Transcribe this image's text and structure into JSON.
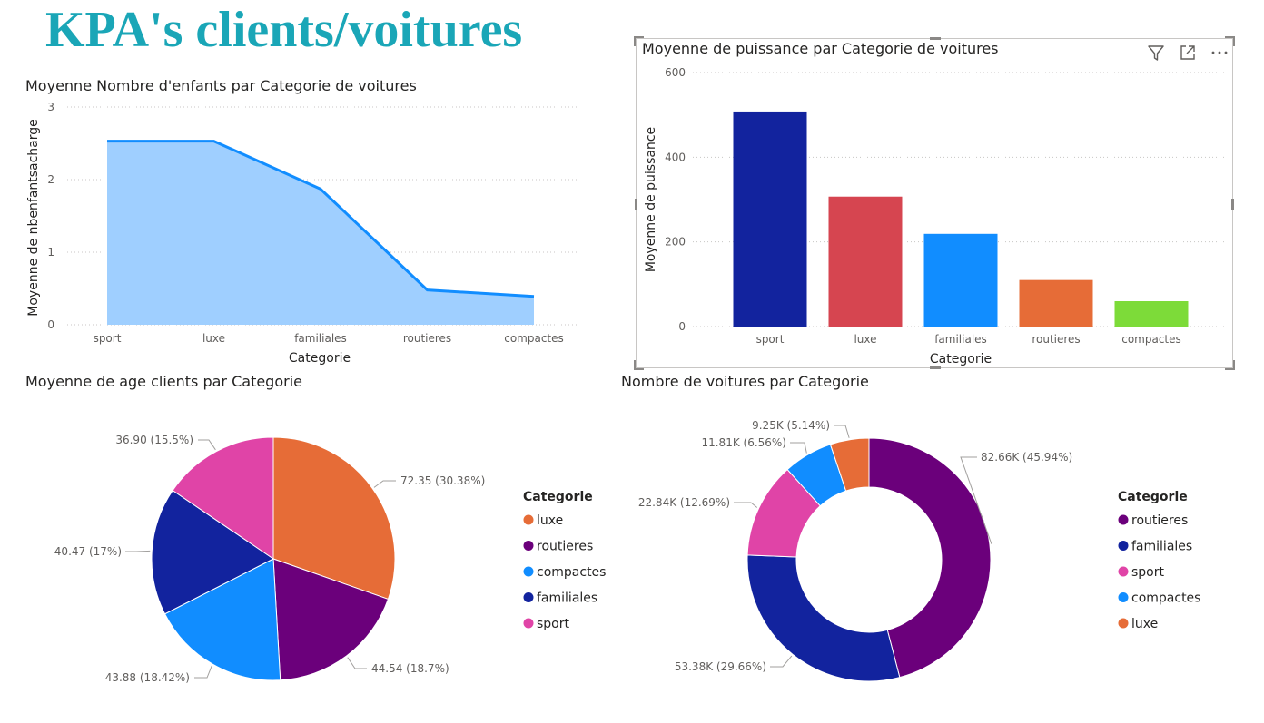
{
  "page_title": "KPA's clients/voitures",
  "colors": {
    "sport": "#e044a7",
    "luxe": "#e66c37",
    "familiales": "#12239e",
    "routieres": "#6b007b",
    "compactes": "#118dff",
    "area_line": "#118dff",
    "area_fill": "#9fcfff"
  },
  "chart_data": [
    {
      "type": "area",
      "title": "Moyenne Nombre d'enfants par Categorie de voitures",
      "xlabel": "Categorie",
      "ylabel": "Moyenne de nbenfantsacharge",
      "categories": [
        "sport",
        "luxe",
        "familiales",
        "routieres",
        "compactes"
      ],
      "values": [
        2.53,
        2.53,
        1.87,
        0.48,
        0.39
      ],
      "ylim": [
        0,
        3
      ],
      "yticks": [
        "0",
        "1",
        "2",
        "3"
      ],
      "grid": true
    },
    {
      "type": "bar",
      "title": "Moyenne de puissance par Categorie de voitures",
      "xlabel": "Categorie",
      "ylabel": "Moyenne de puissance",
      "categories": [
        "sport",
        "luxe",
        "familiales",
        "routieres",
        "compactes"
      ],
      "values": [
        508,
        307,
        219,
        110,
        60
      ],
      "colors": [
        "#12239e",
        "#d64550",
        "#118dff",
        "#e66c37",
        "#7ddb39"
      ],
      "ylim": [
        0,
        600
      ],
      "yticks": [
        "0",
        "200",
        "400",
        "600"
      ],
      "grid": true
    },
    {
      "type": "pie",
      "title": "Moyenne de age clients par Categorie",
      "legend_title": "Categorie",
      "legend_position": "right",
      "legend": [
        "luxe",
        "routieres",
        "compactes",
        "familiales",
        "sport"
      ],
      "slices": [
        {
          "name": "luxe",
          "value": 72.35,
          "label": "72.35 (30.38%)"
        },
        {
          "name": "routieres",
          "value": 44.54,
          "label": "44.54 (18.7%)"
        },
        {
          "name": "compactes",
          "value": 43.88,
          "label": "43.88 (18.42%)"
        },
        {
          "name": "familiales",
          "value": 40.47,
          "label": "40.47 (17%)"
        },
        {
          "name": "sport",
          "value": 36.9,
          "label": "36.90 (15.5%)"
        }
      ]
    },
    {
      "type": "pie",
      "title": "Nombre de voitures par Categorie",
      "legend_title": "Categorie",
      "legend_position": "right",
      "legend": [
        "routieres",
        "familiales",
        "sport",
        "compactes",
        "luxe"
      ],
      "slices": [
        {
          "name": "routieres",
          "value": 82660,
          "label": "82.66K (45.94%)"
        },
        {
          "name": "familiales",
          "value": 53380,
          "label": "53.38K (29.66%)"
        },
        {
          "name": "sport",
          "value": 22840,
          "label": "22.84K (12.69%)"
        },
        {
          "name": "compactes",
          "value": 11810,
          "label": "11.81K (6.56%)"
        },
        {
          "name": "luxe",
          "value": 9250,
          "label": "9.25K (5.14%)"
        }
      ]
    }
  ]
}
